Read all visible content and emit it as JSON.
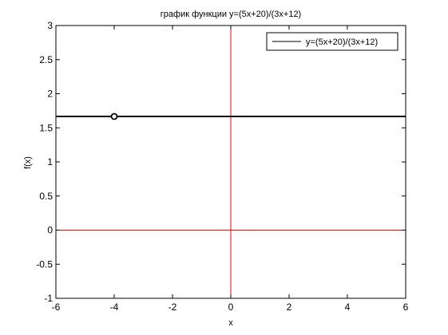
{
  "chart_data": {
    "type": "line",
    "title": "график функции y=(5x+20)/(3x+12)",
    "xlabel": "x",
    "ylabel": "f(x)",
    "xlim": [
      -6,
      6
    ],
    "ylim": [
      -1,
      3
    ],
    "xticks": [
      -6,
      -4,
      -2,
      0,
      2,
      4,
      6
    ],
    "yticks": [
      -1,
      -0.5,
      0,
      0.5,
      1,
      1.5,
      2,
      2.5,
      3
    ],
    "xtick_labels": [
      "-6",
      "-4",
      "-2",
      "0",
      "2",
      "4",
      "6"
    ],
    "ytick_labels": [
      "-1",
      "-0.5",
      "0",
      "0.5",
      "1",
      "1.5",
      "2",
      "2.5",
      "3"
    ],
    "grid": false,
    "legend_position": "top-right",
    "series": [
      {
        "name": "y=(5x+20)/(3x+12)",
        "color": "#000000",
        "x": [
          -6,
          6
        ],
        "y": [
          1.6667,
          1.6667
        ]
      }
    ],
    "hole_point": {
      "x": -4,
      "y": 1.6667,
      "color": "#000000"
    },
    "reference_lines": [
      {
        "orientation": "vertical",
        "value": 0,
        "color": "#ff0000"
      },
      {
        "orientation": "horizontal",
        "value": 0,
        "color": "#ff0000"
      }
    ]
  }
}
